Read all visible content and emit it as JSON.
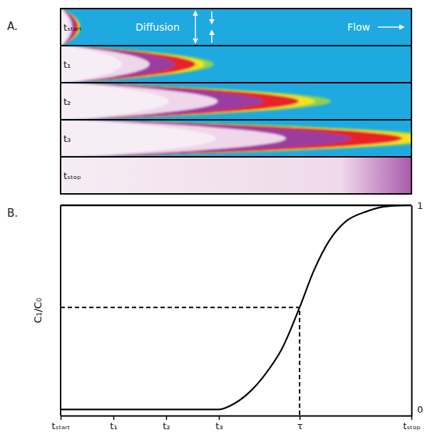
{
  "diagram": {
    "panel_label": "A.",
    "rows": [
      "tₛₜₐᵣₜ",
      "t₁",
      "t₂",
      "t₃",
      "tₛₜₒₚ"
    ],
    "annotations": [
      "Diffusion",
      "Flow"
    ]
  },
  "chart_data": {
    "type": "line",
    "panel_label": "B.",
    "y_label": "C₁/C₀",
    "x": [
      0,
      1,
      2,
      3,
      3.3,
      3.6,
      3.9,
      4.2,
      4.53,
      4.8,
      5.1,
      5.4,
      5.8,
      6.2,
      6.65
    ],
    "values": [
      0,
      0,
      0,
      0,
      0.03,
      0.09,
      0.18,
      0.3,
      0.5,
      0.68,
      0.83,
      0.92,
      0.97,
      0.995,
      1
    ],
    "xlim": [
      0,
      6.65
    ],
    "xticks": [
      {
        "value": 0,
        "label": "tₛₜₐᵣₜ"
      },
      {
        "value": 1,
        "label": "t₁"
      },
      {
        "value": 2,
        "label": "t₂"
      },
      {
        "value": 3,
        "label": "t₃"
      },
      {
        "value": 4.53,
        "label": "τ"
      },
      {
        "value": 6.65,
        "label": "tₛₜₒₚ"
      }
    ],
    "ylim": [
      -0.03,
      1
    ],
    "yticks": [
      0,
      1
    ],
    "reference_point": {
      "x": 4.53,
      "y": 0.5
    },
    "color": "#000000",
    "line_style": "solid",
    "grid": false
  }
}
